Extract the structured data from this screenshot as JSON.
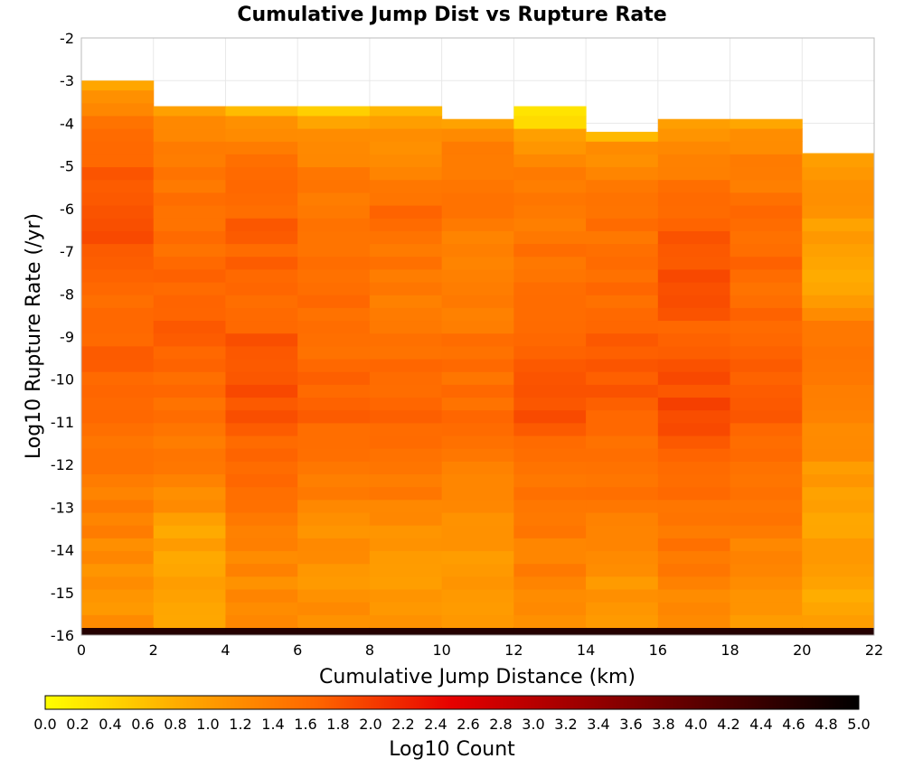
{
  "chart_data": {
    "type": "heatmap",
    "title": "Cumulative Jump Dist vs Rupture Rate",
    "xlabel": "Cumulative Jump Distance (km)",
    "ylabel": "Log10 Rupture Rate (/yr)",
    "xlim": [
      0,
      22
    ],
    "ylim": [
      -16,
      -2
    ],
    "x_ticks": [
      "0",
      "2",
      "4",
      "6",
      "8",
      "10",
      "12",
      "14",
      "16",
      "18",
      "20",
      "22"
    ],
    "y_ticks": [
      "-2",
      "-3",
      "-4",
      "-5",
      "-6",
      "-7",
      "-8",
      "-9",
      "-10",
      "-11",
      "-12",
      "-13",
      "-14",
      "-15",
      "-16"
    ],
    "x_bin_edges": [
      0,
      2,
      4,
      6,
      8,
      10,
      12,
      14,
      16,
      18,
      20,
      22
    ],
    "y_bin_size": 0.3,
    "y_bins_bottom": -16,
    "grid": true,
    "colorbar": {
      "label": "Log10 Count",
      "min": 0.0,
      "max": 5.0,
      "ticks": [
        "0.0",
        "0.2",
        "0.4",
        "0.6",
        "0.8",
        "1.0",
        "1.2",
        "1.4",
        "1.6",
        "1.8",
        "2.0",
        "2.2",
        "2.4",
        "2.6",
        "2.8",
        "3.0",
        "3.2",
        "3.4",
        "3.6",
        "3.8",
        "4.0",
        "4.2",
        "4.4",
        "4.6",
        "4.8",
        "5.0"
      ],
      "gradient": [
        "#ffff00",
        "#ffaa00",
        "#ff6600",
        "#e60000",
        "#990000",
        "#4d0000",
        "#000000"
      ]
    },
    "columns": [
      {
        "x_range": [
          0,
          2
        ],
        "top": -3.0,
        "profile": [
          [
            -3.0,
            0.9
          ],
          [
            -3.6,
            1.3
          ],
          [
            -4.5,
            1.7
          ],
          [
            -6.0,
            1.8
          ],
          [
            -7.0,
            1.8
          ],
          [
            -8.0,
            1.6
          ],
          [
            -10.0,
            1.7
          ],
          [
            -12.0,
            1.5
          ],
          [
            -13.5,
            1.3
          ],
          [
            -15.0,
            1.1
          ],
          [
            -15.9,
            1.2
          ]
        ],
        "bottom_row": 4.6
      },
      {
        "x_range": [
          2,
          4
        ],
        "top": -3.6,
        "profile": [
          [
            -3.6,
            0.9
          ],
          [
            -4.2,
            1.3
          ],
          [
            -5.0,
            1.5
          ],
          [
            -7.0,
            1.6
          ],
          [
            -9.0,
            1.7
          ],
          [
            -11.0,
            1.5
          ],
          [
            -12.5,
            1.3
          ],
          [
            -13.5,
            0.9
          ],
          [
            -15.0,
            1.0
          ],
          [
            -15.9,
            0.8
          ]
        ],
        "bottom_row": 4.6
      },
      {
        "x_range": [
          4,
          6
        ],
        "top": -3.6,
        "profile": [
          [
            -3.6,
            0.4
          ],
          [
            -4.0,
            1.2
          ],
          [
            -5.0,
            1.5
          ],
          [
            -6.5,
            1.7
          ],
          [
            -8.0,
            1.6
          ],
          [
            -10.0,
            1.9
          ],
          [
            -12.0,
            1.6
          ],
          [
            -13.5,
            1.4
          ],
          [
            -15.0,
            1.2
          ],
          [
            -15.9,
            1.3
          ]
        ],
        "bottom_row": 4.6
      },
      {
        "x_range": [
          6,
          8
        ],
        "top": -3.6,
        "profile": [
          [
            -3.6,
            0.4
          ],
          [
            -4.0,
            1.0
          ],
          [
            -5.0,
            1.4
          ],
          [
            -7.0,
            1.5
          ],
          [
            -9.0,
            1.6
          ],
          [
            -10.5,
            1.7
          ],
          [
            -12.0,
            1.5
          ],
          [
            -13.5,
            1.2
          ],
          [
            -15.0,
            1.1
          ],
          [
            -15.9,
            1.2
          ]
        ],
        "bottom_row": 4.6
      },
      {
        "x_range": [
          8,
          10
        ],
        "top": -3.6,
        "profile": [
          [
            -3.6,
            0.5
          ],
          [
            -4.2,
            1.1
          ],
          [
            -6.0,
            1.6
          ],
          [
            -8.0,
            1.4
          ],
          [
            -10.0,
            1.7
          ],
          [
            -12.0,
            1.5
          ],
          [
            -13.5,
            1.2
          ],
          [
            -15.0,
            1.0
          ],
          [
            -15.9,
            1.1
          ]
        ],
        "bottom_row": 4.6
      },
      {
        "x_range": [
          10,
          12
        ],
        "top": -3.9,
        "profile": [
          [
            -3.9,
            0.9
          ],
          [
            -4.5,
            1.3
          ],
          [
            -6.0,
            1.5
          ],
          [
            -7.5,
            1.3
          ],
          [
            -9.0,
            1.5
          ],
          [
            -11.0,
            1.6
          ],
          [
            -13.0,
            1.2
          ],
          [
            -14.5,
            1.0
          ],
          [
            -15.9,
            1.0
          ]
        ],
        "bottom_row": 4.6
      },
      {
        "x_range": [
          12,
          14
        ],
        "top": -3.6,
        "profile": [
          [
            -3.6,
            0.3
          ],
          [
            -4.0,
            null
          ],
          [
            -4.2,
            0.9
          ],
          [
            -5.0,
            1.3
          ],
          [
            -7.0,
            1.5
          ],
          [
            -9.0,
            1.7
          ],
          [
            -10.5,
            1.9
          ],
          [
            -12.0,
            1.6
          ],
          [
            -13.5,
            1.4
          ],
          [
            -15.0,
            1.3
          ],
          [
            -15.9,
            1.1
          ]
        ],
        "bottom_row": 4.6
      },
      {
        "x_range": [
          14,
          16
        ],
        "top": -4.2,
        "profile": [
          [
            -4.2,
            0.6
          ],
          [
            -4.5,
            1.1
          ],
          [
            -6.0,
            1.5
          ],
          [
            -8.0,
            1.6
          ],
          [
            -9.5,
            1.8
          ],
          [
            -11.0,
            1.7
          ],
          [
            -13.0,
            1.4
          ],
          [
            -14.0,
            1.2
          ],
          [
            -15.0,
            1.1
          ],
          [
            -15.9,
            1.0
          ]
        ],
        "bottom_row": 4.6
      },
      {
        "x_range": [
          16,
          18
        ],
        "top": -3.9,
        "profile": [
          [
            -3.9,
            0.9
          ],
          [
            -4.5,
            1.3
          ],
          [
            -6.0,
            1.6
          ],
          [
            -7.5,
            1.9
          ],
          [
            -9.0,
            1.7
          ],
          [
            -10.5,
            1.9
          ],
          [
            -12.0,
            1.7
          ],
          [
            -13.5,
            1.5
          ],
          [
            -15.0,
            1.3
          ],
          [
            -15.9,
            1.2
          ]
        ],
        "bottom_row": 4.6
      },
      {
        "x_range": [
          18,
          20
        ],
        "top": -3.9,
        "profile": [
          [
            -3.9,
            0.9
          ],
          [
            -4.5,
            1.2
          ],
          [
            -6.0,
            1.6
          ],
          [
            -8.0,
            1.6
          ],
          [
            -9.5,
            1.8
          ],
          [
            -11.0,
            1.7
          ],
          [
            -13.0,
            1.5
          ],
          [
            -14.5,
            1.2
          ],
          [
            -15.9,
            1.1
          ]
        ],
        "bottom_row": 4.6
      },
      {
        "x_range": [
          20,
          22
        ],
        "top": -4.7,
        "profile": [
          [
            -4.7,
            0.9
          ],
          [
            -5.5,
            1.2
          ],
          [
            -6.5,
            1.0
          ],
          [
            -7.5,
            0.8
          ],
          [
            -8.5,
            1.3
          ],
          [
            -10.0,
            1.5
          ],
          [
            -11.5,
            1.2
          ],
          [
            -13.0,
            0.9
          ],
          [
            -14.5,
            1.0
          ],
          [
            -15.2,
            0.7
          ],
          [
            -15.9,
            1.1
          ]
        ],
        "bottom_row": 4.6
      }
    ]
  }
}
